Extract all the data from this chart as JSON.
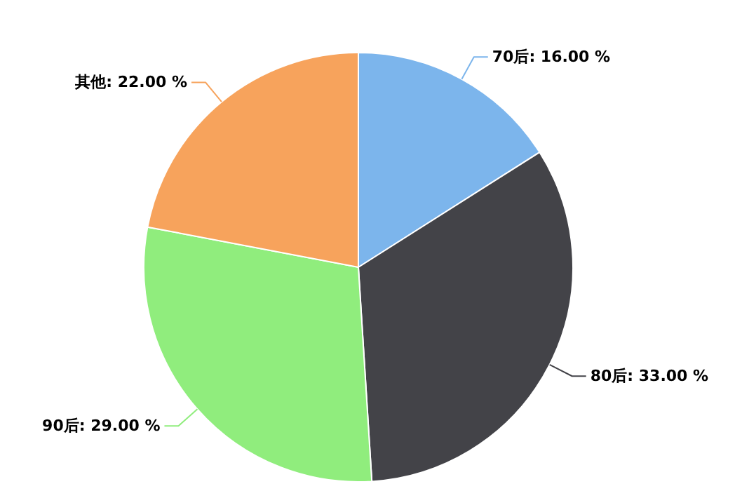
{
  "chart_data": {
    "type": "pie",
    "categories": [
      "70后",
      "80后",
      "90后",
      "其他"
    ],
    "values": [
      16,
      33,
      29,
      22
    ],
    "value_labels": [
      "16.00 %",
      "33.00 %",
      "29.00 %",
      "22.00 %"
    ],
    "colors": [
      "#7cb5ec",
      "#434348",
      "#90ed7d",
      "#f7a35c"
    ]
  }
}
